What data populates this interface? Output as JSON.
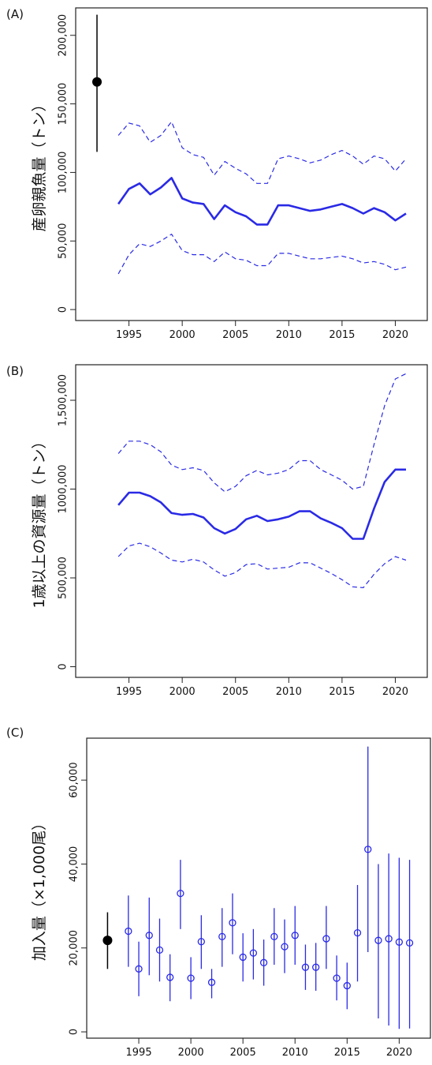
{
  "chart_data": [
    {
      "panel_label": "(A)",
      "type": "line",
      "ylabel": "産卵親魚量（トン）",
      "xlim": [
        1990,
        2023
      ],
      "ylim": [
        -8000,
        220000
      ],
      "xticks": [
        1995,
        2000,
        2005,
        2010,
        2015,
        2020
      ],
      "xtick_labels": [
        "1995",
        "2000",
        "2005",
        "2010",
        "2015",
        "2020"
      ],
      "yticks": [
        0,
        50000,
        100000,
        150000,
        200000
      ],
      "ytick_labels": [
        "0",
        "50,000",
        "100,000",
        "150,000",
        "200,000"
      ],
      "colors": {
        "series": "#2a2ae6",
        "reference": "#000000"
      },
      "x": [
        1994,
        1995,
        1996,
        1997,
        1998,
        1999,
        2000,
        2001,
        2002,
        2003,
        2004,
        2005,
        2006,
        2007,
        2008,
        2009,
        2010,
        2011,
        2012,
        2013,
        2014,
        2015,
        2016,
        2017,
        2018,
        2019,
        2020,
        2021
      ],
      "series": [
        {
          "style": "solid",
          "values": [
            77000,
            88000,
            92000,
            84000,
            89000,
            96000,
            81000,
            78000,
            77000,
            66000,
            76000,
            71000,
            68000,
            62000,
            62000,
            76000,
            76000,
            74000,
            72000,
            73000,
            75000,
            77000,
            74000,
            70000,
            74000,
            71000,
            65000,
            70000
          ]
        },
        {
          "style": "dashed",
          "values": [
            127000,
            136000,
            134000,
            122000,
            127000,
            137000,
            118000,
            113000,
            111000,
            98000,
            108000,
            103000,
            99000,
            92000,
            92000,
            110000,
            112000,
            110000,
            107000,
            109000,
            113000,
            116000,
            112000,
            106000,
            112000,
            110000,
            101000,
            110000
          ]
        },
        {
          "style": "dashed",
          "values": [
            26000,
            40000,
            48000,
            46000,
            50000,
            55000,
            43000,
            40000,
            40000,
            35000,
            42000,
            37000,
            36000,
            32000,
            32000,
            41000,
            41000,
            39000,
            37000,
            37000,
            38000,
            39000,
            37000,
            34000,
            35000,
            33000,
            29000,
            31000
          ]
        }
      ],
      "reference_point": {
        "x": 1992,
        "y": 166000,
        "low": 115000,
        "high": 215000
      }
    },
    {
      "panel_label": "(B)",
      "type": "line",
      "ylabel": "1歳以上の資源量（トン）",
      "xlim": [
        1990,
        2023
      ],
      "ylim": [
        -60000,
        1700000
      ],
      "xticks": [
        1995,
        2000,
        2005,
        2010,
        2015,
        2020
      ],
      "xtick_labels": [
        "1995",
        "2000",
        "2005",
        "2010",
        "2015",
        "2020"
      ],
      "yticks": [
        0,
        500000,
        1000000,
        1500000
      ],
      "ytick_labels": [
        "0",
        "500,000",
        "1000,000",
        "1,500,000"
      ],
      "colors": {
        "series": "#2a2ae6"
      },
      "x": [
        1994,
        1995,
        1996,
        1997,
        1998,
        1999,
        2000,
        2001,
        2002,
        2003,
        2004,
        2005,
        2006,
        2007,
        2008,
        2009,
        2010,
        2011,
        2012,
        2013,
        2014,
        2015,
        2016,
        2017,
        2018,
        2019,
        2020,
        2021
      ],
      "series": [
        {
          "style": "solid",
          "values": [
            910000,
            980000,
            980000,
            960000,
            925000,
            865000,
            855000,
            860000,
            840000,
            780000,
            750000,
            775000,
            830000,
            850000,
            820000,
            830000,
            845000,
            875000,
            875000,
            835000,
            810000,
            780000,
            720000,
            720000,
            890000,
            1040000,
            1110000,
            1110000
          ]
        },
        {
          "style": "dashed",
          "values": [
            1200000,
            1270000,
            1270000,
            1250000,
            1210000,
            1135000,
            1110000,
            1120000,
            1105000,
            1035000,
            985000,
            1015000,
            1075000,
            1105000,
            1080000,
            1090000,
            1110000,
            1160000,
            1160000,
            1110000,
            1080000,
            1050000,
            1000000,
            1015000,
            1250000,
            1470000,
            1620000,
            1650000
          ]
        },
        {
          "style": "dashed",
          "values": [
            620000,
            680000,
            695000,
            675000,
            640000,
            600000,
            590000,
            605000,
            590000,
            545000,
            510000,
            530000,
            575000,
            580000,
            550000,
            555000,
            560000,
            585000,
            585000,
            555000,
            525000,
            490000,
            450000,
            445000,
            520000,
            580000,
            620000,
            600000
          ]
        }
      ]
    },
    {
      "panel_label": "(C)",
      "type": "scatter",
      "ylabel": "加入量（×1,000尾）",
      "xlim": [
        1990,
        2023
      ],
      "ylim": [
        -1500,
        70000
      ],
      "xticks": [
        1995,
        2000,
        2005,
        2010,
        2015,
        2020
      ],
      "xtick_labels": [
        "1995",
        "2000",
        "2005",
        "2010",
        "2015",
        "2020"
      ],
      "yticks": [
        0,
        20000,
        40000,
        60000
      ],
      "ytick_labels": [
        "0",
        "20,000",
        "40,000",
        "60,000"
      ],
      "colors": {
        "series": "#2a2ae6",
        "reference": "#000000"
      },
      "x": [
        1994,
        1995,
        1996,
        1997,
        1998,
        1999,
        2000,
        2001,
        2002,
        2003,
        2004,
        2005,
        2006,
        2007,
        2008,
        2009,
        2010,
        2011,
        2012,
        2013,
        2014,
        2015,
        2016,
        2017,
        2018,
        2019,
        2020,
        2021
      ],
      "series": [
        {
          "style": "points_with_errorbars",
          "values": [
            24000,
            15000,
            23000,
            19500,
            13000,
            33000,
            12800,
            21500,
            11800,
            22700,
            26000,
            17800,
            18800,
            16500,
            22700,
            20300,
            23000,
            15400,
            15400,
            22200,
            12800,
            11000,
            23600,
            43500,
            21800,
            22200,
            21400,
            21200
          ],
          "low": [
            15500,
            8500,
            13500,
            12000,
            7300,
            24500,
            7800,
            15000,
            8000,
            15500,
            18500,
            12000,
            12500,
            11000,
            16000,
            14000,
            16000,
            10000,
            9800,
            15000,
            7500,
            5400,
            12000,
            19000,
            3200,
            1500,
            700,
            800
          ],
          "high": [
            32500,
            21500,
            32000,
            27000,
            18500,
            41000,
            17800,
            27800,
            15000,
            29500,
            33000,
            23500,
            24500,
            22000,
            29500,
            26800,
            30000,
            20800,
            21200,
            30000,
            18200,
            16500,
            35000,
            68000,
            40000,
            42500,
            41500,
            41000
          ]
        }
      ],
      "reference_point": {
        "x": 1992,
        "y": 21800,
        "low": 15000,
        "high": 28500
      }
    }
  ]
}
